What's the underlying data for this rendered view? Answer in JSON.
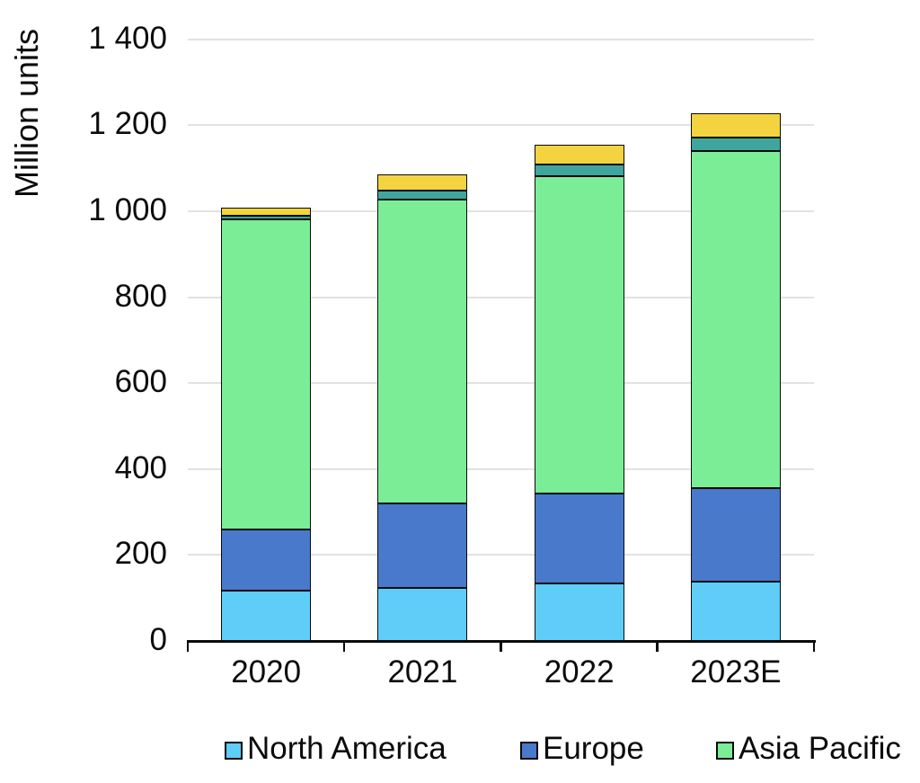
{
  "chart_data": {
    "type": "bar",
    "stacked": true,
    "title": "",
    "ylabel": "Million units",
    "xlabel": "",
    "categories": [
      "2020",
      "2021",
      "2022",
      "2023E"
    ],
    "series": [
      {
        "name": "North America",
        "color": "#5FCDF7",
        "values": [
          118,
          124,
          134,
          138
        ]
      },
      {
        "name": "Europe",
        "color": "#4979CB",
        "values": [
          141,
          196,
          208,
          217
        ]
      },
      {
        "name": "Asia Pacific",
        "color": "#7BED97",
        "values": [
          721,
          706,
          740,
          784
        ]
      },
      {
        "name": "",
        "color": "#40A69D",
        "values": [
          9,
          21,
          26,
          33
        ],
        "note": "legend label not visible in image (teal segment)"
      },
      {
        "name": "",
        "color": "#F3D340",
        "values": [
          19,
          39,
          47,
          56
        ],
        "note": "legend label not visible in image (yellow segment)"
      }
    ],
    "approx_totals": [
      1008,
      1086,
      1155,
      1228
    ],
    "ylim": [
      0,
      1400
    ],
    "ytick_step": 200,
    "ytick_values": [
      0,
      200,
      400,
      600,
      800,
      1000,
      1200,
      1400
    ],
    "ytick_labels": [
      "0",
      "200",
      "400",
      "600",
      "800",
      "1 000",
      "1 200",
      "1 400"
    ],
    "grid": "horizontal-only",
    "legend_position": "bottom"
  },
  "axes": {
    "y_title": "Million units",
    "x_labels": [
      "2020",
      "2021",
      "2022",
      "2023E"
    ]
  },
  "legend": {
    "items": [
      {
        "label": "North America",
        "color": "#5FCDF7"
      },
      {
        "label": "Europe",
        "color": "#4979CB"
      },
      {
        "label": "Asia Pacific",
        "color": "#7BED97"
      }
    ]
  },
  "colors": {
    "gridline": "#e2e2e2",
    "axis": "#0b0b0b",
    "bar_border": "#0a0a0a",
    "background": "#ffffff"
  }
}
